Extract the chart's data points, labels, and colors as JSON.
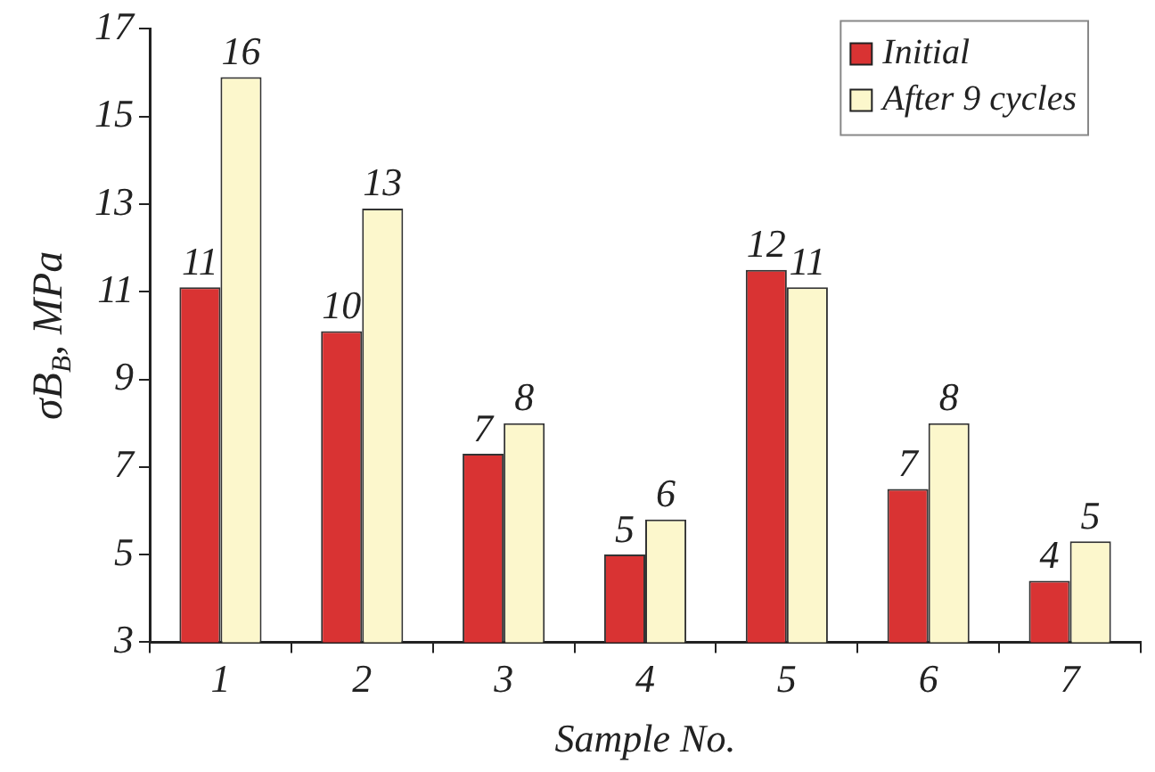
{
  "chart_data": {
    "type": "bar",
    "xlabel": "Sample No.",
    "ylabel": "σB$_{B}$, MPa",
    "categories": [
      "1",
      "2",
      "3",
      "4",
      "5",
      "6",
      "7"
    ],
    "series": [
      {
        "name": "Initial",
        "color": "#d93333",
        "values": [
          11.1,
          10.1,
          7.3,
          5.0,
          11.5,
          6.5,
          4.4
        ],
        "value_labels": [
          "11",
          "10",
          "7",
          "5",
          "12",
          "7",
          "4"
        ]
      },
      {
        "name": "After 9 cycles",
        "color": "#fcf7cc",
        "values": [
          15.9,
          12.9,
          8.0,
          5.8,
          11.1,
          8.0,
          5.3
        ],
        "value_labels": [
          "16",
          "13",
          "8",
          "6",
          "11",
          "8",
          "5"
        ]
      }
    ],
    "ylim": [
      3,
      17
    ],
    "yticks": [
      3,
      5,
      7,
      9,
      11,
      13,
      15,
      17
    ],
    "grid": false,
    "legend": "top right"
  }
}
